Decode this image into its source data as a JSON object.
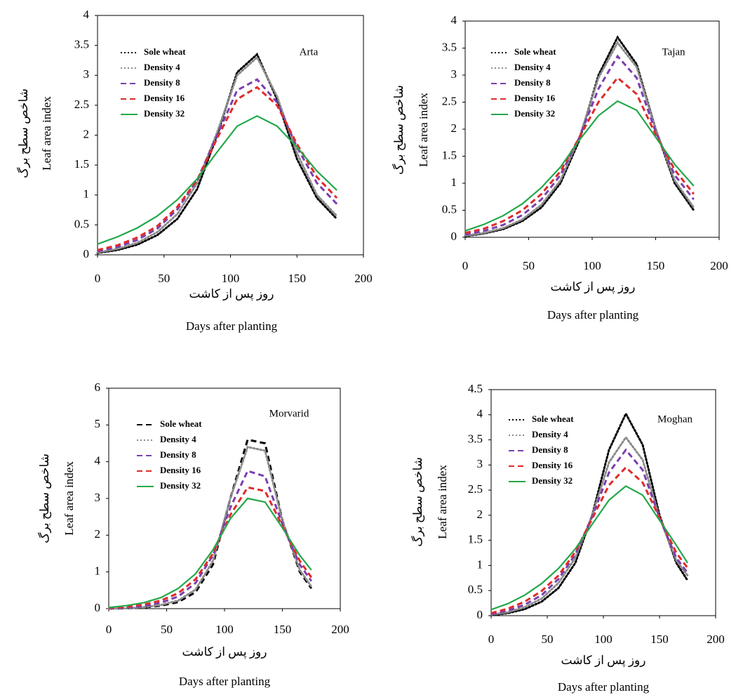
{
  "chart_data": [
    {
      "type": "line",
      "annotation": "Arta",
      "ylabel": "Leaf area index",
      "ylabel_fa": "شاخص سطح برگ",
      "xlabel": "Days after planting",
      "xlabel_fa": "روز پس از کاشت",
      "xlim": [
        0,
        200
      ],
      "xticks": [
        0,
        50,
        100,
        150,
        200
      ],
      "ylim": [
        0,
        4
      ],
      "yticks": [
        0,
        0.5,
        1,
        1.5,
        2,
        2.5,
        3,
        3.5,
        4
      ],
      "grid": false,
      "x": [
        0,
        15,
        30,
        45,
        60,
        75,
        90,
        105,
        120,
        135,
        150,
        165,
        180
      ],
      "series": [
        {
          "name": "Sole wheat",
          "color": "#000000",
          "line_style": "dotted",
          "values": [
            0.03,
            0.08,
            0.17,
            0.33,
            0.6,
            1.1,
            2.0,
            3.05,
            3.35,
            2.6,
            1.6,
            0.95,
            0.6
          ]
        },
        {
          "name": "Density 4",
          "color": "#8c8c8c",
          "line_style": "dotted",
          "values": [
            0.04,
            0.1,
            0.2,
            0.38,
            0.68,
            1.2,
            2.05,
            3.0,
            3.3,
            2.65,
            1.7,
            1.0,
            0.65
          ]
        },
        {
          "name": "Density 8",
          "color": "#7b3fb0",
          "line_style": "dashed",
          "values": [
            0.06,
            0.13,
            0.25,
            0.44,
            0.76,
            1.25,
            2.0,
            2.75,
            2.93,
            2.55,
            1.8,
            1.2,
            0.85
          ]
        },
        {
          "name": "Density 16",
          "color": "#e02b2b",
          "line_style": "dashed",
          "values": [
            0.08,
            0.16,
            0.29,
            0.48,
            0.8,
            1.25,
            1.95,
            2.6,
            2.8,
            2.5,
            1.85,
            1.3,
            0.95
          ]
        },
        {
          "name": "Density 32",
          "color": "#22a84a",
          "line_style": "solid",
          "values": [
            0.18,
            0.3,
            0.45,
            0.65,
            0.92,
            1.27,
            1.72,
            2.15,
            2.32,
            2.15,
            1.8,
            1.4,
            1.08
          ]
        }
      ]
    },
    {
      "type": "line",
      "annotation": "Tajan",
      "ylabel": "Leaf area index",
      "ylabel_fa": "شاخص سطح برگ",
      "xlabel": "Days after planting",
      "xlabel_fa": "روز پس از کاشت",
      "xlim": [
        0,
        200
      ],
      "xticks": [
        0,
        50,
        100,
        150,
        200
      ],
      "ylim": [
        0,
        4
      ],
      "yticks": [
        0,
        0.5,
        1,
        1.5,
        2,
        2.5,
        3,
        3.5,
        4
      ],
      "grid": false,
      "x": [
        0,
        15,
        30,
        45,
        60,
        75,
        90,
        105,
        120,
        135,
        150,
        165,
        180
      ],
      "series": [
        {
          "name": "Sole wheat",
          "color": "#000000",
          "line_style": "dotted",
          "values": [
            0.02,
            0.07,
            0.15,
            0.3,
            0.55,
            1.0,
            1.8,
            3.0,
            3.7,
            3.2,
            2.0,
            1.0,
            0.5
          ]
        },
        {
          "name": "Density 4",
          "color": "#8c8c8c",
          "line_style": "dotted",
          "values": [
            0.03,
            0.08,
            0.17,
            0.33,
            0.6,
            1.05,
            1.85,
            2.95,
            3.6,
            3.15,
            2.0,
            1.05,
            0.55
          ]
        },
        {
          "name": "Density 8",
          "color": "#7b3fb0",
          "line_style": "dashed",
          "values": [
            0.05,
            0.12,
            0.23,
            0.41,
            0.7,
            1.15,
            1.85,
            2.75,
            3.35,
            2.95,
            1.95,
            1.15,
            0.7
          ]
        },
        {
          "name": "Density 16",
          "color": "#e02b2b",
          "line_style": "dashed",
          "values": [
            0.08,
            0.16,
            0.3,
            0.5,
            0.8,
            1.22,
            1.85,
            2.5,
            2.95,
            2.65,
            1.9,
            1.25,
            0.8
          ]
        },
        {
          "name": "Density 32",
          "color": "#22a84a",
          "line_style": "solid",
          "values": [
            0.12,
            0.24,
            0.4,
            0.62,
            0.92,
            1.3,
            1.8,
            2.25,
            2.52,
            2.35,
            1.85,
            1.35,
            0.95
          ]
        }
      ]
    },
    {
      "type": "line",
      "annotation": "Morvarid",
      "ylabel": "Leaf area index",
      "ylabel_fa": "شاخص سطح برگ",
      "xlabel": "Days after planting",
      "xlabel_fa": "روز پس از کاشت",
      "xlim": [
        0,
        200
      ],
      "xticks": [
        0,
        50,
        100,
        150,
        200
      ],
      "ylim": [
        0,
        6
      ],
      "yticks": [
        0,
        1,
        2,
        3,
        4,
        5,
        6
      ],
      "grid": false,
      "x": [
        0,
        15,
        30,
        45,
        60,
        75,
        90,
        105,
        120,
        135,
        150,
        165,
        175
      ],
      "series": [
        {
          "name": "Sole wheat",
          "color": "#000000",
          "line_style": "dashed",
          "values": [
            0.0,
            0.01,
            0.03,
            0.08,
            0.18,
            0.45,
            1.2,
            3.0,
            4.6,
            4.5,
            2.4,
            1.0,
            0.55
          ]
        },
        {
          "name": "Density 4",
          "color": "#8c8c8c",
          "line_style": "dotted",
          "values": [
            0.0,
            0.01,
            0.04,
            0.1,
            0.22,
            0.52,
            1.3,
            3.0,
            4.4,
            4.3,
            2.4,
            1.05,
            0.6
          ]
        },
        {
          "name": "Density 8",
          "color": "#7b3fb0",
          "line_style": "dashed",
          "values": [
            0.01,
            0.03,
            0.07,
            0.16,
            0.33,
            0.7,
            1.45,
            2.75,
            3.75,
            3.6,
            2.3,
            1.2,
            0.75
          ]
        },
        {
          "name": "Density 16",
          "color": "#e02b2b",
          "line_style": "dashed",
          "values": [
            0.02,
            0.05,
            0.11,
            0.22,
            0.42,
            0.8,
            1.5,
            2.55,
            3.3,
            3.2,
            2.25,
            1.3,
            0.85
          ]
        },
        {
          "name": "Density 32",
          "color": "#22a84a",
          "line_style": "solid",
          "values": [
            0.03,
            0.08,
            0.16,
            0.3,
            0.55,
            0.95,
            1.6,
            2.45,
            3.0,
            2.9,
            2.2,
            1.45,
            1.05
          ]
        }
      ]
    },
    {
      "type": "line",
      "annotation": "Moghan",
      "ylabel": "Leaf area index",
      "ylabel_fa": "شاخص سطح برگ",
      "xlabel": "Days after planting",
      "xlabel_fa": "روز پس از کاشت",
      "xlim": [
        0,
        200
      ],
      "xticks": [
        0,
        50,
        100,
        150,
        200
      ],
      "ylim": [
        0,
        4.5
      ],
      "yticks": [
        0,
        0.5,
        1,
        1.5,
        2,
        2.5,
        3,
        3.5,
        4,
        4.5
      ],
      "grid": false,
      "x": [
        0,
        15,
        30,
        45,
        60,
        75,
        90,
        105,
        120,
        135,
        150,
        165,
        175
      ],
      "series": [
        {
          "name": "Sole wheat",
          "color": "#000000",
          "line_style": "dotted",
          "values": [
            0.01,
            0.05,
            0.13,
            0.28,
            0.55,
            1.05,
            2.0,
            3.3,
            4.02,
            3.4,
            2.0,
            1.05,
            0.7
          ]
        },
        {
          "name": "Density 4",
          "color": "#8c8c8c",
          "line_style": "dotted",
          "values": [
            0.02,
            0.07,
            0.17,
            0.34,
            0.65,
            1.15,
            2.0,
            3.05,
            3.55,
            3.1,
            1.95,
            1.1,
            0.8
          ]
        },
        {
          "name": "Density 8",
          "color": "#7b3fb0",
          "line_style": "dashed",
          "values": [
            0.03,
            0.1,
            0.22,
            0.41,
            0.73,
            1.22,
            1.97,
            2.85,
            3.3,
            2.9,
            1.95,
            1.15,
            0.85
          ]
        },
        {
          "name": "Density 16",
          "color": "#e02b2b",
          "line_style": "dashed",
          "values": [
            0.05,
            0.14,
            0.28,
            0.49,
            0.8,
            1.27,
            1.93,
            2.6,
            2.95,
            2.65,
            1.95,
            1.25,
            0.95
          ]
        },
        {
          "name": "Density 32",
          "color": "#22a84a",
          "line_style": "solid",
          "values": [
            0.12,
            0.24,
            0.41,
            0.64,
            0.94,
            1.33,
            1.82,
            2.3,
            2.58,
            2.4,
            1.9,
            1.4,
            1.05
          ]
        }
      ]
    }
  ]
}
